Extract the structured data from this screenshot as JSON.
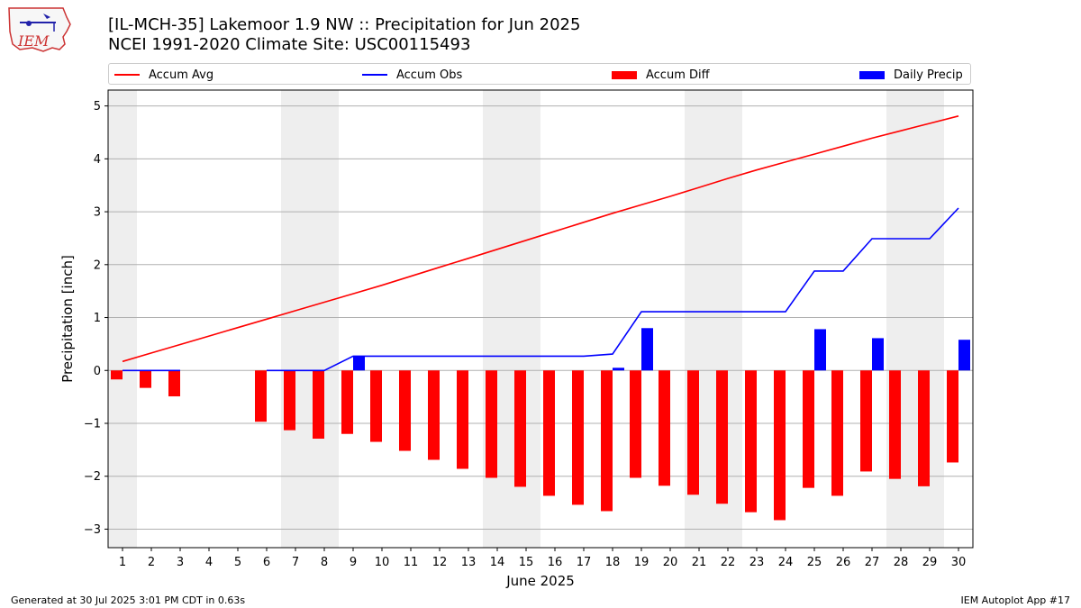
{
  "title_line1": "[IL-MCH-35] Lakemoor 1.9 NW :: Precipitation for Jun 2025",
  "title_line2": "NCEI 1991-2020 Climate Site: USC00115493",
  "logo_text": "IEM",
  "legend": [
    {
      "label": "Accum Avg",
      "kind": "line",
      "color": "#ff0000"
    },
    {
      "label": "Accum Obs",
      "kind": "line",
      "color": "#0000ff"
    },
    {
      "label": "Accum Diff",
      "kind": "bar",
      "color": "#ff0000"
    },
    {
      "label": "Daily Precip",
      "kind": "bar",
      "color": "#0000ff"
    }
  ],
  "footer_left": "Generated at 30 Jul 2025 3:01 PM CDT in 0.63s",
  "footer_right": "IEM Autoplot App #17",
  "chart_data": {
    "type": "bar",
    "xlabel": "June 2025",
    "ylabel": "Precipitation [inch]",
    "ylim": [
      -3.35,
      5.3
    ],
    "yticks": [
      -3,
      -2,
      -1,
      0,
      1,
      2,
      3,
      4,
      5
    ],
    "x": [
      1,
      2,
      3,
      4,
      5,
      6,
      7,
      8,
      9,
      10,
      11,
      12,
      13,
      14,
      15,
      16,
      17,
      18,
      19,
      20,
      21,
      22,
      23,
      24,
      25,
      26,
      27,
      28,
      29,
      30
    ],
    "weekend_bands": [
      [
        1,
        1
      ],
      [
        7,
        8
      ],
      [
        14,
        15
      ],
      [
        21,
        22
      ],
      [
        28,
        29
      ]
    ],
    "grid": "horizontal",
    "series": [
      {
        "name": "Accum Avg",
        "kind": "line",
        "color": "#ff0000",
        "x": [
          1,
          2,
          3,
          4,
          5,
          6,
          7,
          8,
          9,
          10,
          11,
          12,
          13,
          14,
          15,
          16,
          17,
          18,
          19,
          20,
          21,
          22,
          23,
          24,
          25,
          26,
          27,
          28,
          29,
          30
        ],
        "values": [
          0.17,
          0.33,
          0.49,
          0.65,
          0.81,
          0.97,
          1.13,
          1.29,
          1.45,
          1.61,
          1.78,
          1.95,
          2.12,
          2.29,
          2.46,
          2.63,
          2.8,
          2.97,
          3.13,
          3.29,
          3.46,
          3.63,
          3.79,
          3.94,
          4.09,
          4.24,
          4.39,
          4.53,
          4.67,
          4.81
        ]
      },
      {
        "name": "Accum Obs",
        "kind": "line",
        "color": "#0000ff",
        "x": [
          1,
          2,
          3,
          6,
          7,
          8,
          9,
          10,
          11,
          12,
          13,
          14,
          15,
          16,
          17,
          18,
          19,
          20,
          21,
          22,
          23,
          24,
          25,
          26,
          27,
          28,
          29,
          30
        ],
        "values": [
          0,
          0,
          0,
          0,
          0,
          0,
          0.27,
          0.27,
          0.27,
          0.27,
          0.27,
          0.27,
          0.27,
          0.27,
          0.27,
          0.31,
          1.11,
          1.11,
          1.11,
          1.11,
          1.11,
          1.11,
          1.88,
          1.88,
          2.49,
          2.49,
          2.49,
          3.07
        ]
      },
      {
        "name": "Accum Diff",
        "kind": "bar",
        "color": "#ff0000",
        "x": [
          1,
          2,
          3,
          6,
          7,
          8,
          9,
          10,
          11,
          12,
          13,
          14,
          15,
          16,
          17,
          18,
          19,
          20,
          21,
          22,
          23,
          24,
          25,
          26,
          27,
          28,
          29,
          30
        ],
        "values": [
          -0.17,
          -0.33,
          -0.49,
          -0.97,
          -1.13,
          -1.29,
          -1.2,
          -1.35,
          -1.52,
          -1.69,
          -1.86,
          -2.03,
          -2.2,
          -2.37,
          -2.54,
          -2.66,
          -2.03,
          -2.18,
          -2.35,
          -2.52,
          -2.68,
          -2.83,
          -2.22,
          -2.37,
          -1.91,
          -2.05,
          -2.19,
          -1.74
        ]
      },
      {
        "name": "Daily Precip",
        "kind": "bar",
        "color": "#0000ff",
        "x": [
          9,
          18,
          19,
          25,
          27,
          30
        ],
        "values": [
          0.27,
          0.05,
          0.8,
          0.78,
          0.61,
          0.58
        ]
      }
    ]
  }
}
